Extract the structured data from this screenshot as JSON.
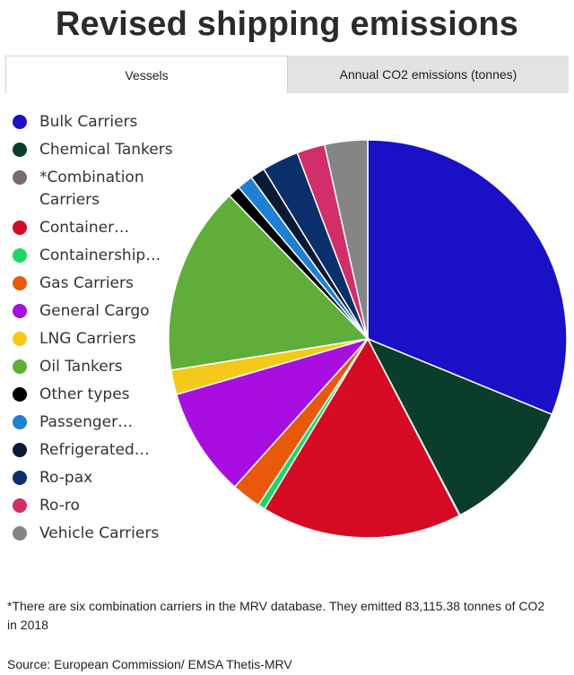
{
  "title": "Revised shipping emissions",
  "tabs": [
    {
      "label": "Vessels",
      "active": true
    },
    {
      "label": "Annual CO2 emissions (tonnes)",
      "active": false
    }
  ],
  "footnote": "*There are six combination carriers in the MRV database. They emitted 83,115.38 tonnes of CO2 in 2018",
  "source": "Source: European Commission/ EMSA Thetis-MRV",
  "chart_data": {
    "type": "pie",
    "legend_position": "left",
    "categories": [
      "Bulk Carriers",
      "Chemical Tankers",
      "*Combination Carriers",
      "Container…",
      "Containership…",
      "Gas Carriers",
      "General Cargo",
      "LNG Carriers",
      "Oil Tankers",
      "Other types",
      "Passenger…",
      "Refrigerated…",
      "Ro-pax",
      "Ro-ro",
      "Vehicle Carriers"
    ],
    "values": [
      31.4,
      11.2,
      0.05,
      16.4,
      0.6,
      2.4,
      8.9,
      2.0,
      15.4,
      1.0,
      1.3,
      1.2,
      3.0,
      2.3,
      3.5
    ],
    "colors": [
      "#1a10c6",
      "#0a3d2a",
      "#7d6a6a",
      "#d40b23",
      "#1ed667",
      "#e8590c",
      "#a80ee0",
      "#f5c91a",
      "#5fae3a",
      "#000000",
      "#1f7fd1",
      "#0a1a33",
      "#0b2f6b",
      "#d12e6a",
      "#858585"
    ]
  }
}
